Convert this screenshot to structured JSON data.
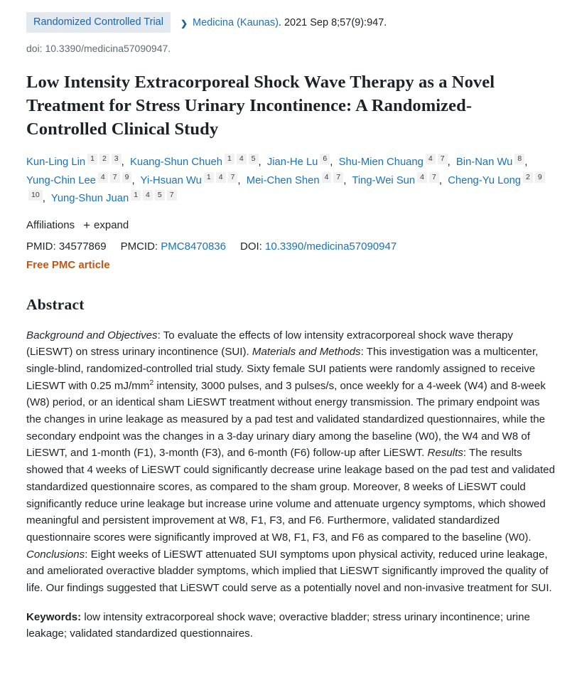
{
  "badge": {
    "label": "Randomized Controlled Trial"
  },
  "citation": {
    "journal": "Medicina (Kaunas)",
    "details": ". 2021 Sep 8;57(9):947.",
    "doi_line": "doi: 10.3390/medicina57090947."
  },
  "title": "Low Intensity Extracorporeal Shock Wave Therapy as a Novel Treatment for Stress Urinary Incontinence: A Randomized-Controlled Clinical Study",
  "authors": [
    {
      "name": "Kun-Ling Lin",
      "affiliations": [
        "1",
        "2",
        "3"
      ]
    },
    {
      "name": "Kuang-Shun Chueh",
      "affiliations": [
        "1",
        "4",
        "5"
      ]
    },
    {
      "name": "Jian-He Lu",
      "affiliations": [
        "6"
      ]
    },
    {
      "name": "Shu-Mien Chuang",
      "affiliations": [
        "4",
        "7"
      ]
    },
    {
      "name": "Bin-Nan Wu",
      "affiliations": [
        "8"
      ]
    },
    {
      "name": "Yung-Chin Lee",
      "affiliations": [
        "4",
        "7",
        "9"
      ]
    },
    {
      "name": "Yi-Hsuan Wu",
      "affiliations": [
        "1",
        "4",
        "7"
      ]
    },
    {
      "name": "Mei-Chen Shen",
      "affiliations": [
        "4",
        "7"
      ]
    },
    {
      "name": "Ting-Wei Sun",
      "affiliations": [
        "4",
        "7"
      ]
    },
    {
      "name": "Cheng-Yu Long",
      "affiliations": [
        "2",
        "9",
        "10"
      ]
    },
    {
      "name": "Yung-Shun Juan",
      "affiliations": [
        "1",
        "4",
        "5",
        "7"
      ]
    }
  ],
  "affiliations_row": {
    "label": "Affiliations",
    "plus_icon": "+",
    "expand_label": "expand"
  },
  "identifiers": {
    "pmid_label": "PMID:",
    "pmid": "34577869",
    "pmcid_label": "PMCID:",
    "pmcid": "PMC8470836",
    "doi_label": "DOI:",
    "doi": "10.3390/medicina57090947"
  },
  "free_pmc": "Free PMC article",
  "abstract": {
    "heading": "Abstract",
    "segments": [
      {
        "style": "italic",
        "text": "Background and Objectives"
      },
      {
        "style": "normal",
        "text": ": To evaluate the effects of low intensity extracorporeal shock wave therapy (LiESWT) on stress urinary incontinence (SUI). "
      },
      {
        "style": "italic",
        "text": "Materials and Methods"
      },
      {
        "style": "normal",
        "text": ": This investigation was a multicenter, single-blind, randomized-controlled trial study. Sixty female SUI patients were randomly assigned to receive LiESWT with 0.25 mJ/mm"
      },
      {
        "style": "sup",
        "text": "2"
      },
      {
        "style": "normal",
        "text": " intensity, 3000 pulses, and 3 pulses/s, once weekly for a 4-week (W4) and 8-week (W8) period, or an identical sham LiESWT treatment without energy transmission. The primary endpoint was the changes in urine leakage as measured by a pad test and validated standardized questionnaires, while the secondary endpoint was the changes in a 3-day urinary diary among the baseline (W0), the W4 and W8 of LiESWT, and 1-month (F1), 3-month (F3), and 6-month (F6) follow-up after LiESWT. "
      },
      {
        "style": "italic",
        "text": "Results"
      },
      {
        "style": "normal",
        "text": ": The results showed that 4 weeks of LiESWT could significantly decrease urine leakage based on the pad test and validated standardized questionnaire scores, as compared to the sham group. Moreover, 8 weeks of LiESWT could significantly reduce urine leakage but increase urine volume and attenuate urgency symptoms, which showed meaningful and persistent improvement at W8, F1, F3, and F6. Furthermore, validated standardized questionnaire scores were significantly improved at W8, F1, F3, and F6 as compared to the baseline (W0). "
      },
      {
        "style": "italic",
        "text": "Conclusions"
      },
      {
        "style": "normal",
        "text": ": Eight weeks of LiESWT attenuated SUI symptoms upon physical activity, reduced urine leakage, and ameliorated overactive bladder symptoms, which implied that LiESWT significantly improved the quality of life. Our findings suggested that LiESWT could serve as a potentially novel and non-invasive treatment for SUI."
      }
    ],
    "keywords_label": "Keywords:",
    "keywords_text": " low intensity extracorporeal shock wave; overactive bladder; stress urinary incontinence; urine leakage; validated standardized questionnaires."
  },
  "colors": {
    "link_blue": "#1a72b8",
    "badge_background": "#e3e9f1",
    "badge_text": "#1a65a8",
    "free_pmc_orange": "#bf5616",
    "doi_gray": "#5f6b72",
    "body_text": "#212529",
    "sup_background": "#f1f1f1"
  }
}
